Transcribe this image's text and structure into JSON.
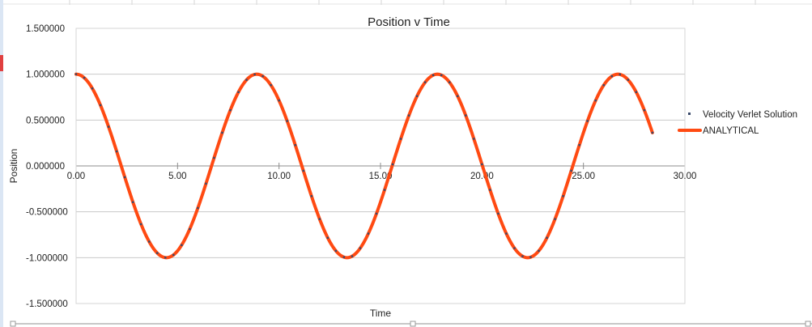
{
  "chart_data": {
    "type": "scatter",
    "title": "Position v Time",
    "xlabel": "Time",
    "ylabel": "Position",
    "xlim": [
      0,
      30
    ],
    "ylim": [
      -1.5,
      1.5
    ],
    "x_ticks": [
      0,
      5,
      10,
      15,
      20,
      25,
      30
    ],
    "x_tick_labels": [
      "0.00",
      "5.00",
      "10.00",
      "15.00",
      "20.00",
      "25.00",
      "30.00"
    ],
    "y_ticks": [
      1.5,
      1.0,
      0.5,
      0.0,
      -0.5,
      -1.0,
      -1.5
    ],
    "y_tick_labels": [
      "1.500000",
      "1.000000",
      "0.500000",
      "0.000000",
      "-0.500000",
      "-1.000000",
      "-1.500000"
    ],
    "grid": "horizontal",
    "legend_position": "right",
    "period": 8.9,
    "x_max": 28.4,
    "sample_step": 0.4,
    "series": [
      {
        "name": "Velocity Verlet Solution",
        "style": "markers",
        "color": "#3a4a6b"
      },
      {
        "name": "ANALYTICAL",
        "style": "line",
        "color": "#ff4a12"
      }
    ]
  }
}
